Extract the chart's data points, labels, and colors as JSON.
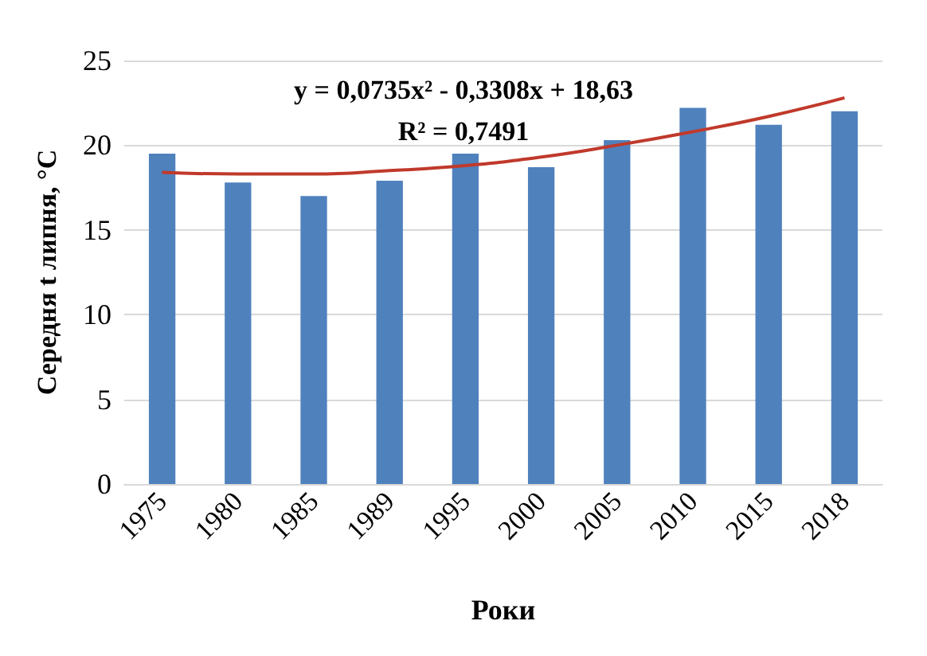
{
  "chart_data": {
    "type": "bar",
    "categories": [
      "1975",
      "1980",
      "1985",
      "1989",
      "1995",
      "2000",
      "2005",
      "2010",
      "2015",
      "2018"
    ],
    "series": [
      {
        "color": "#4f81bd",
        "values": [
          19.5,
          17.8,
          17,
          17.9,
          19.5,
          18.7,
          20.3,
          22.2,
          21.2,
          22
        ]
      },
      {
        "type": "line",
        "color": "#c0392b",
        "values": [
          18.4,
          18.3,
          18.3,
          18.5,
          18.8,
          19.3,
          20,
          20.8,
          21.7,
          22.8
        ]
      }
    ],
    "annotations": [
      "y = 0,0735x² - 0,3308x + 18,63",
      "R² = 0,7491"
    ],
    "xlabel": "Роки",
    "ylabel": "Середня t липня, °C",
    "ylim": [
      0,
      25
    ],
    "yticks": [
      0,
      5,
      10,
      15,
      20,
      25
    ],
    "grid": "y",
    "marker": "none"
  }
}
